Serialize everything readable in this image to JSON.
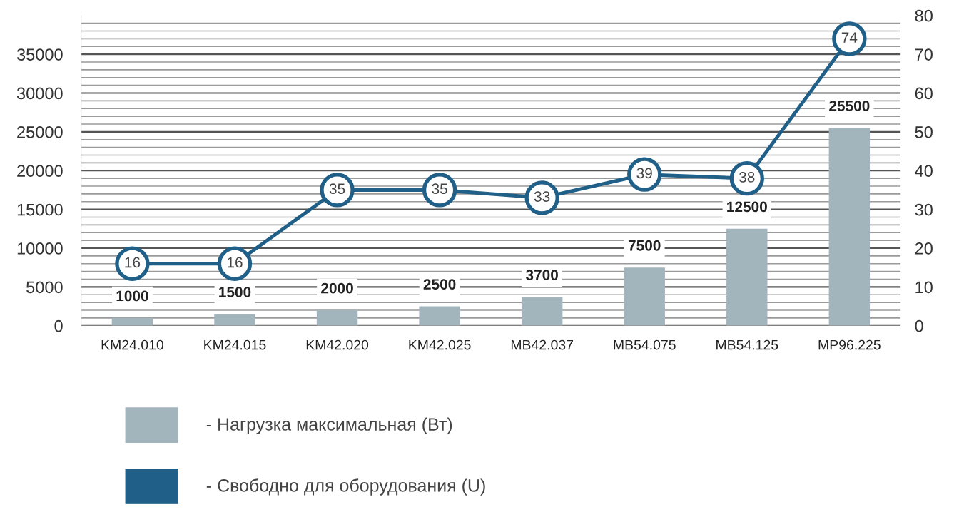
{
  "chart_data": {
    "type": "bar",
    "categories": [
      "KM24.010",
      "KM24.015",
      "KM42.020",
      "KM42.025",
      "MB42.037",
      "MB54.075",
      "MB54.125",
      "MP96.225"
    ],
    "series": [
      {
        "name": "- Нагрузка максимальная (Вт)",
        "color": "#a3b5bc",
        "values": [
          1000,
          1500,
          2000,
          2500,
          3700,
          7500,
          12500,
          25500
        ]
      },
      {
        "name": "- Свободно для оборудования (U)",
        "type": "line",
        "axis": "y2",
        "color": "#1f5f88",
        "marker": "circle",
        "values": [
          16,
          16,
          35,
          35,
          33,
          39,
          38,
          74
        ]
      }
    ],
    "ylim": [
      0,
      40000
    ],
    "yticks": [
      0,
      {
        "value": 1000,
        "label": null
      },
      {
        "value": 2000,
        "label": null
      },
      {
        "value": 3000,
        "label": null
      },
      {
        "value": 4000,
        "label": null
      },
      5000,
      {
        "value": 6000,
        "label": null
      },
      {
        "value": 7000,
        "label": null
      },
      {
        "value": 8000,
        "label": null
      },
      {
        "value": 9000,
        "label": null
      },
      10000,
      {
        "value": 11000,
        "label": null
      },
      {
        "value": 12000,
        "label": null
      },
      {
        "value": 13000,
        "label": null
      },
      {
        "value": 14000,
        "label": null
      },
      15000,
      {
        "value": 16000,
        "label": null
      },
      {
        "value": 17000,
        "label": null
      },
      {
        "value": 18000,
        "label": null
      },
      {
        "value": 19000,
        "label": null
      },
      20000,
      {
        "value": 21000,
        "label": null
      },
      {
        "value": 22000,
        "label": null
      },
      {
        "value": 23000,
        "label": null
      },
      {
        "value": 24000,
        "label": null
      },
      25000,
      {
        "value": 26000,
        "label": null
      },
      {
        "value": 27000,
        "label": null
      },
      {
        "value": 28000,
        "label": null
      },
      {
        "value": 29000,
        "label": null
      },
      30000,
      {
        "value": 31000,
        "label": null
      },
      {
        "value": 32000,
        "label": null
      },
      {
        "value": 33000,
        "label": null
      },
      {
        "value": 34000,
        "label": null
      },
      35000,
      {
        "value": 36000,
        "label": null
      },
      {
        "value": 37000,
        "label": null
      },
      {
        "value": 38000,
        "label": null
      },
      {
        "value": 39000,
        "label": null
      }
    ],
    "y2lim": [
      0,
      80
    ],
    "y2ticks": [
      0,
      10,
      20,
      30,
      40,
      50,
      60,
      70,
      80
    ],
    "grid": "y",
    "data_labels": true,
    "legend": "bottom left"
  }
}
